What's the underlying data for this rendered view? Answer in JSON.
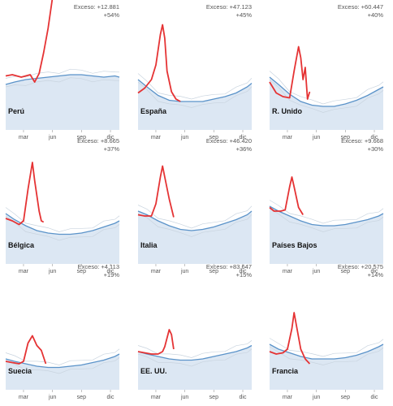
{
  "chart_data": [
    {
      "type": "line",
      "country": "Perú",
      "excess_label": "Exceso: +12.881",
      "excess_pct": "+54%",
      "months": [
        "mar",
        "jun",
        "sep",
        "dic"
      ],
      "x_range": [
        1,
        52
      ],
      "y_range": [
        0,
        10
      ],
      "baseline": [
        [
          1,
          4.4
        ],
        [
          5,
          4.6
        ],
        [
          10,
          4.8
        ],
        [
          15,
          4.9
        ],
        [
          20,
          5.0
        ],
        [
          25,
          5.1
        ],
        [
          30,
          5.2
        ],
        [
          35,
          5.2
        ],
        [
          40,
          5.1
        ],
        [
          45,
          5.0
        ],
        [
          50,
          5.1
        ],
        [
          52,
          5.0
        ]
      ],
      "excess": [
        [
          1,
          5.1
        ],
        [
          4,
          5.2
        ],
        [
          8,
          5.0
        ],
        [
          12,
          5.2
        ],
        [
          14,
          4.6
        ],
        [
          16,
          5.3
        ],
        [
          18,
          7.0
        ],
        [
          20,
          9.0
        ],
        [
          22,
          11.5
        ]
      ]
    },
    {
      "type": "line",
      "country": "España",
      "excess_label": "Exceso: +47.123",
      "excess_pct": "+45%",
      "months": [
        "mar",
        "jun",
        "sep",
        "dic"
      ],
      "x_range": [
        1,
        52
      ],
      "y_range": [
        0,
        10
      ],
      "baseline": [
        [
          1,
          4.8
        ],
        [
          5,
          4.2
        ],
        [
          10,
          3.5
        ],
        [
          15,
          3.1
        ],
        [
          20,
          3.0
        ],
        [
          25,
          3.0
        ],
        [
          30,
          3.0
        ],
        [
          35,
          3.2
        ],
        [
          40,
          3.4
        ],
        [
          45,
          3.7
        ],
        [
          50,
          4.2
        ],
        [
          52,
          4.5
        ]
      ],
      "excess": [
        [
          1,
          3.7
        ],
        [
          4,
          4.1
        ],
        [
          7,
          4.8
        ],
        [
          9,
          6.0
        ],
        [
          11,
          8.5
        ],
        [
          12,
          9.3
        ],
        [
          13,
          8.2
        ],
        [
          14,
          5.5
        ],
        [
          16,
          3.8
        ],
        [
          18,
          3.2
        ],
        [
          20,
          3.0
        ]
      ]
    },
    {
      "type": "line",
      "country": "R. Unido",
      "excess_label": "Exceso: +60.447",
      "excess_pct": "+40%",
      "months": [
        "mar",
        "jun",
        "sep",
        "dic"
      ],
      "x_range": [
        1,
        52
      ],
      "y_range": [
        0,
        10
      ],
      "baseline": [
        [
          1,
          5.0
        ],
        [
          5,
          4.4
        ],
        [
          10,
          3.6
        ],
        [
          15,
          3.0
        ],
        [
          20,
          2.7
        ],
        [
          25,
          2.6
        ],
        [
          30,
          2.6
        ],
        [
          35,
          2.8
        ],
        [
          40,
          3.1
        ],
        [
          45,
          3.5
        ],
        [
          50,
          4.0
        ],
        [
          52,
          4.2
        ]
      ],
      "excess": [
        [
          1,
          4.6
        ],
        [
          4,
          3.7
        ],
        [
          7,
          3.4
        ],
        [
          10,
          3.3
        ],
        [
          12,
          5.5
        ],
        [
          14,
          7.5
        ],
        [
          15,
          6.6
        ],
        [
          16,
          4.8
        ],
        [
          17,
          5.8
        ],
        [
          18,
          3.2
        ],
        [
          19,
          3.8
        ]
      ]
    },
    {
      "type": "line",
      "country": "Bélgica",
      "excess_label": "Exceso: +8.665",
      "excess_pct": "+37%",
      "months": [
        "mar",
        "jun",
        "sep",
        "dic"
      ],
      "x_range": [
        1,
        52
      ],
      "y_range": [
        0,
        10
      ],
      "baseline": [
        [
          1,
          4.8
        ],
        [
          5,
          4.3
        ],
        [
          10,
          3.8
        ],
        [
          15,
          3.4
        ],
        [
          20,
          3.2
        ],
        [
          25,
          3.1
        ],
        [
          30,
          3.1
        ],
        [
          35,
          3.2
        ],
        [
          40,
          3.4
        ],
        [
          45,
          3.7
        ],
        [
          50,
          4.0
        ],
        [
          52,
          4.2
        ]
      ],
      "excess": [
        [
          1,
          4.4
        ],
        [
          4,
          4.2
        ],
        [
          7,
          3.9
        ],
        [
          9,
          4.2
        ],
        [
          11,
          6.8
        ],
        [
          13,
          9.0
        ],
        [
          14,
          7.5
        ],
        [
          16,
          5.0
        ],
        [
          17,
          4.2
        ],
        [
          18,
          4.1
        ]
      ]
    },
    {
      "type": "line",
      "country": "Italia",
      "excess_label": "Exceso: +46.420",
      "excess_pct": "+36%",
      "months": [
        "mar",
        "jun",
        "sep",
        "dic"
      ],
      "x_range": [
        1,
        52
      ],
      "y_range": [
        0,
        10
      ],
      "baseline": [
        [
          1,
          5.0
        ],
        [
          5,
          4.7
        ],
        [
          10,
          4.2
        ],
        [
          15,
          3.8
        ],
        [
          20,
          3.5
        ],
        [
          25,
          3.4
        ],
        [
          30,
          3.5
        ],
        [
          35,
          3.7
        ],
        [
          40,
          4.0
        ],
        [
          45,
          4.3
        ],
        [
          50,
          4.7
        ],
        [
          52,
          5.0
        ]
      ],
      "excess": [
        [
          1,
          4.7
        ],
        [
          4,
          4.6
        ],
        [
          7,
          4.6
        ],
        [
          9,
          5.6
        ],
        [
          11,
          7.8
        ],
        [
          12,
          8.7
        ],
        [
          13,
          7.8
        ],
        [
          15,
          6.0
        ],
        [
          17,
          4.5
        ]
      ]
    },
    {
      "type": "line",
      "country": "Países Bajos",
      "excess_label": "Exceso: +9.668",
      "excess_pct": "+30%",
      "months": [
        "mar",
        "jun",
        "sep",
        "dic"
      ],
      "x_range": [
        1,
        52
      ],
      "y_range": [
        0,
        10
      ],
      "baseline": [
        [
          1,
          5.4
        ],
        [
          5,
          5.0
        ],
        [
          10,
          4.6
        ],
        [
          15,
          4.2
        ],
        [
          20,
          3.9
        ],
        [
          25,
          3.8
        ],
        [
          30,
          3.8
        ],
        [
          35,
          3.9
        ],
        [
          40,
          4.1
        ],
        [
          45,
          4.3
        ],
        [
          50,
          4.6
        ],
        [
          52,
          4.8
        ]
      ],
      "excess": [
        [
          1,
          5.3
        ],
        [
          3,
          5.0
        ],
        [
          6,
          5.0
        ],
        [
          8,
          5.1
        ],
        [
          10,
          7.0
        ],
        [
          11,
          7.8
        ],
        [
          12,
          7.0
        ],
        [
          14,
          5.3
        ],
        [
          16,
          4.7
        ]
      ]
    },
    {
      "type": "line",
      "country": "Suecia",
      "excess_label": "Exceso: +4.113",
      "excess_pct": "+19%",
      "months": [
        "mar",
        "jun",
        "sep",
        "dic"
      ],
      "x_range": [
        1,
        52
      ],
      "y_range": [
        0,
        10
      ],
      "baseline": [
        [
          1,
          3.2
        ],
        [
          5,
          3.0
        ],
        [
          10,
          2.8
        ],
        [
          15,
          2.6
        ],
        [
          20,
          2.5
        ],
        [
          25,
          2.5
        ],
        [
          30,
          2.6
        ],
        [
          35,
          2.7
        ],
        [
          40,
          2.9
        ],
        [
          45,
          3.1
        ],
        [
          50,
          3.4
        ],
        [
          52,
          3.6
        ]
      ],
      "excess": [
        [
          1,
          3.0
        ],
        [
          4,
          2.9
        ],
        [
          7,
          2.8
        ],
        [
          9,
          3.0
        ],
        [
          11,
          4.5
        ],
        [
          13,
          5.1
        ],
        [
          15,
          4.3
        ],
        [
          17,
          3.9
        ],
        [
          19,
          2.8
        ]
      ]
    },
    {
      "type": "line",
      "country": "EE. UU.",
      "excess_label": "Exceso: +83.647",
      "excess_pct": "+15%",
      "months": [
        "mar",
        "jun",
        "sep",
        "dic"
      ],
      "x_range": [
        1,
        52
      ],
      "y_range": [
        0,
        10
      ],
      "baseline": [
        [
          1,
          3.8
        ],
        [
          5,
          3.6
        ],
        [
          10,
          3.4
        ],
        [
          15,
          3.2
        ],
        [
          20,
          3.1
        ],
        [
          25,
          3.1
        ],
        [
          30,
          3.2
        ],
        [
          35,
          3.4
        ],
        [
          40,
          3.6
        ],
        [
          45,
          3.8
        ],
        [
          50,
          4.1
        ],
        [
          52,
          4.3
        ]
      ],
      "excess": [
        [
          1,
          3.8
        ],
        [
          4,
          3.7
        ],
        [
          7,
          3.6
        ],
        [
          10,
          3.6
        ],
        [
          12,
          3.8
        ],
        [
          13,
          4.2
        ],
        [
          15,
          5.6
        ],
        [
          16,
          5.2
        ],
        [
          17,
          4.0
        ]
      ]
    },
    {
      "type": "line",
      "country": "Francia",
      "excess_label": "Exceso: +20.575",
      "excess_pct": "+14%",
      "months": [
        "mar",
        "jun",
        "sep",
        "dic"
      ],
      "x_range": [
        1,
        52
      ],
      "y_range": [
        0,
        10
      ],
      "baseline": [
        [
          1,
          4.4
        ],
        [
          5,
          4.0
        ],
        [
          10,
          3.7
        ],
        [
          15,
          3.4
        ],
        [
          20,
          3.2
        ],
        [
          25,
          3.2
        ],
        [
          30,
          3.2
        ],
        [
          35,
          3.3
        ],
        [
          40,
          3.5
        ],
        [
          45,
          3.8
        ],
        [
          50,
          4.2
        ],
        [
          52,
          4.4
        ]
      ],
      "excess": [
        [
          1,
          3.8
        ],
        [
          4,
          3.6
        ],
        [
          7,
          3.7
        ],
        [
          9,
          4.0
        ],
        [
          11,
          5.7
        ],
        [
          12,
          7.0
        ],
        [
          13,
          6.0
        ],
        [
          15,
          4.0
        ],
        [
          17,
          3.2
        ],
        [
          19,
          2.8
        ]
      ]
    }
  ],
  "style": {
    "excess_color": "#e53334",
    "baseline_color": "#5b93c9",
    "fill_color": "#dce7f3",
    "ghost_color": "#c9d4df",
    "tick_color": "#555555"
  }
}
